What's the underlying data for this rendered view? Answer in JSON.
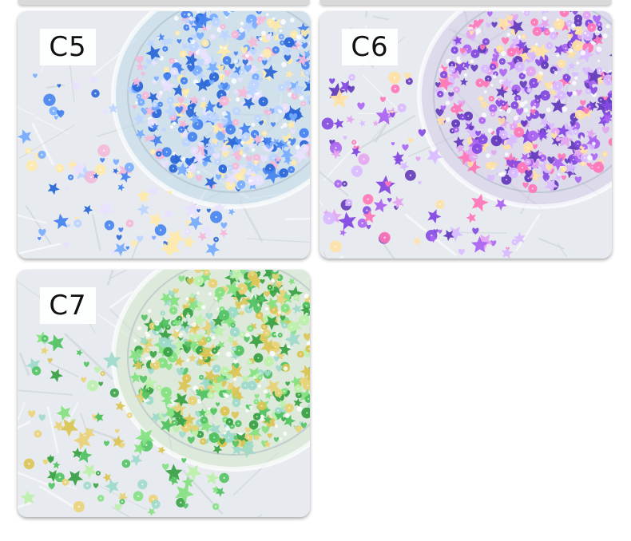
{
  "cards": [
    {
      "label": "C5",
      "palette": [
        "#1f5fd6",
        "#3b7cf0",
        "#6fa8ff",
        "#b9d3ff",
        "#f3b5d7",
        "#e8e0ff",
        "#ffe9a6"
      ],
      "tray_tint": "#bcd7ea"
    },
    {
      "label": "C6",
      "palette": [
        "#5b2fb8",
        "#7d3fe0",
        "#a65cf2",
        "#e3a0f0",
        "#ff6fb4",
        "#d7b7ff",
        "#ffe0a0"
      ],
      "tray_tint": "#d0c8e8"
    },
    {
      "label": "C7",
      "palette": [
        "#2f9d3a",
        "#48c05a",
        "#7ee07a",
        "#b9f0a8",
        "#d9c24a",
        "#e8d070",
        "#9ad8c8"
      ],
      "tray_tint": "#cfe6c8"
    }
  ]
}
